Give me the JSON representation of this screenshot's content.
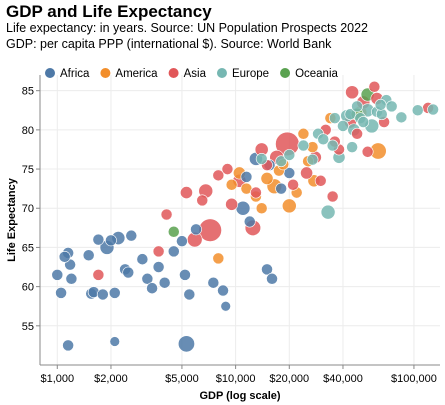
{
  "chart_data": {
    "type": "scatter",
    "title": "GDP and Life Expectancy",
    "subtitle_lines": [
      "Life expectancy: in years. Source: UN Population Prospects 2022",
      "GDP: per capita PPP (international $). Source: World Bank"
    ],
    "xlabel": "GDP (log scale)",
    "ylabel": "Life Expectancy",
    "x_scale": "log",
    "xlim": [
      800,
      140000
    ],
    "ylim": [
      50,
      87
    ],
    "x_ticks": [
      1000,
      2000,
      5000,
      10000,
      20000,
      40000,
      100000
    ],
    "x_tick_labels": [
      "$1,000",
      "$2,000",
      "$5,000",
      "$10,000",
      "$20,000",
      "$40,000",
      "$100,000"
    ],
    "y_ticks": [
      55,
      60,
      65,
      70,
      75,
      80,
      85
    ],
    "y_tick_labels": [
      "55",
      "60",
      "65",
      "70",
      "75",
      "80",
      "85"
    ],
    "grid": true,
    "legend_position": "top-left",
    "series": [
      {
        "name": "Africa",
        "color": "#4e79a7",
        "points": [
          [
            1000,
            61.5,
            0.3
          ],
          [
            1050,
            59.2,
            0.3
          ],
          [
            1150,
            64.3,
            0.3
          ],
          [
            1180,
            62.8,
            0.3
          ],
          [
            1200,
            61.0,
            0.3
          ],
          [
            1150,
            52.5,
            0.3
          ],
          [
            1100,
            63.8,
            0.3
          ],
          [
            1550,
            59.1,
            0.3
          ],
          [
            1600,
            59.3,
            0.3
          ],
          [
            1800,
            59.0,
            0.3
          ],
          [
            1500,
            64.0,
            0.3
          ],
          [
            1700,
            66.0,
            0.3
          ],
          [
            1900,
            65.0,
            0.6
          ],
          [
            2000,
            65.9,
            0.3
          ],
          [
            2200,
            66.2,
            0.5
          ],
          [
            2600,
            66.5,
            0.3
          ],
          [
            2400,
            62.2,
            0.3
          ],
          [
            2100,
            59.2,
            0.3
          ],
          [
            2500,
            61.8,
            0.3
          ],
          [
            3000,
            63.5,
            0.3
          ],
          [
            3200,
            61.0,
            0.3
          ],
          [
            3400,
            59.8,
            0.3
          ],
          [
            3700,
            62.5,
            0.3
          ],
          [
            4000,
            60.5,
            0.3
          ],
          [
            4500,
            64.5,
            0.3
          ],
          [
            5000,
            65.8,
            0.3
          ],
          [
            5200,
            61.5,
            0.3
          ],
          [
            5500,
            59.0,
            0.3
          ],
          [
            5300,
            52.7,
            0.9
          ],
          [
            6000,
            67.3,
            0.3
          ],
          [
            7500,
            60.5,
            0.3
          ],
          [
            8500,
            59.5,
            0.3
          ],
          [
            11000,
            70.0,
            0.6
          ],
          [
            11500,
            74.0,
            0.3
          ],
          [
            12000,
            68.3,
            0.3
          ],
          [
            13000,
            76.3,
            0.5
          ],
          [
            15000,
            62.2,
            0.3
          ],
          [
            16000,
            61.0,
            0.3
          ],
          [
            15500,
            75.5,
            0.3
          ],
          [
            18000,
            72.5,
            0.3
          ],
          [
            20000,
            74.5,
            0.3
          ],
          [
            2100,
            53.0,
            0.2
          ],
          [
            8800,
            57.5,
            0.2
          ]
        ]
      },
      {
        "name": "America",
        "color": "#f28e2b",
        "points": [
          [
            8000,
            63.6,
            0.3
          ],
          [
            9500,
            73.0,
            0.3
          ],
          [
            10500,
            74.5,
            0.4
          ],
          [
            11500,
            72.5,
            0.3
          ],
          [
            13000,
            71.5,
            0.3
          ],
          [
            14000,
            70.0,
            0.3
          ],
          [
            15000,
            73.8,
            0.4
          ],
          [
            16500,
            72.8,
            0.7
          ],
          [
            17500,
            74.8,
            0.3
          ],
          [
            18500,
            75.6,
            0.3
          ],
          [
            20000,
            70.3,
            0.6
          ],
          [
            22000,
            72.0,
            0.3
          ],
          [
            24000,
            79.5,
            0.3
          ],
          [
            25500,
            76.0,
            0.3
          ],
          [
            27000,
            77.8,
            0.3
          ],
          [
            34000,
            81.5,
            0.3
          ],
          [
            50000,
            82.2,
            0.5
          ],
          [
            63000,
            77.3,
            0.9
          ],
          [
            27500,
            73.5,
            0.4
          ]
        ]
      },
      {
        "name": "Asia",
        "color": "#e15759",
        "points": [
          [
            1700,
            61.5,
            0.3
          ],
          [
            3700,
            64.5,
            0.3
          ],
          [
            4100,
            69.2,
            0.3
          ],
          [
            5300,
            72.0,
            0.4
          ],
          [
            5900,
            66.0,
            0.7
          ],
          [
            6500,
            71.0,
            0.3
          ],
          [
            6800,
            72.2,
            0.6
          ],
          [
            7200,
            67.2,
            2.1
          ],
          [
            8000,
            74.2,
            0.3
          ],
          [
            9000,
            75.0,
            0.3
          ],
          [
            9500,
            70.5,
            0.4
          ],
          [
            10500,
            73.5,
            0.5
          ],
          [
            12500,
            67.5,
            0.8
          ],
          [
            13000,
            72.0,
            0.3
          ],
          [
            14000,
            77.5,
            0.5
          ],
          [
            17000,
            76.5,
            0.6
          ],
          [
            19500,
            78.2,
            2.3
          ],
          [
            21000,
            73.0,
            0.3
          ],
          [
            25000,
            74.5,
            0.4
          ],
          [
            28000,
            76.5,
            0.4
          ],
          [
            30000,
            73.5,
            0.3
          ],
          [
            32000,
            80.0,
            0.3
          ],
          [
            38000,
            77.5,
            0.3
          ],
          [
            44000,
            81.0,
            0.4
          ],
          [
            45000,
            84.8,
            0.5
          ],
          [
            48000,
            79.5,
            0.3
          ],
          [
            52000,
            83.5,
            0.5
          ],
          [
            55000,
            77.2,
            0.3
          ],
          [
            60000,
            85.5,
            0.3
          ],
          [
            62000,
            84.0,
            0.4
          ],
          [
            68000,
            81.0,
            0.3
          ],
          [
            120000,
            82.8,
            0.3
          ],
          [
            35000,
            71.5,
            0.3
          ],
          [
            36000,
            78.5,
            0.3
          ],
          [
            15000,
            75.5,
            0.3
          ]
        ]
      },
      {
        "name": "Europe",
        "color": "#76b7b2",
        "points": [
          [
            14000,
            76.3,
            0.3
          ],
          [
            18000,
            76.0,
            0.3
          ],
          [
            20000,
            76.8,
            0.3
          ],
          [
            24000,
            78.0,
            0.3
          ],
          [
            27000,
            76.2,
            0.3
          ],
          [
            29000,
            79.5,
            0.3
          ],
          [
            31000,
            78.8,
            0.3
          ],
          [
            33000,
            69.5,
            0.6
          ],
          [
            35000,
            78.0,
            0.3
          ],
          [
            36000,
            81.5,
            0.3
          ],
          [
            38000,
            76.5,
            0.4
          ],
          [
            40000,
            80.5,
            0.3
          ],
          [
            42000,
            81.8,
            0.4
          ],
          [
            44000,
            82.0,
            0.3
          ],
          [
            46000,
            80.0,
            0.4
          ],
          [
            48000,
            83.0,
            0.3
          ],
          [
            50000,
            81.5,
            0.3
          ],
          [
            52000,
            81.0,
            0.3
          ],
          [
            55000,
            82.5,
            0.5
          ],
          [
            58000,
            80.5,
            0.6
          ],
          [
            62000,
            82.3,
            0.3
          ],
          [
            66000,
            82.0,
            0.3
          ],
          [
            70000,
            83.8,
            0.3
          ],
          [
            75000,
            83.0,
            0.3
          ],
          [
            85000,
            81.6,
            0.3
          ],
          [
            105000,
            82.5,
            0.3
          ],
          [
            128000,
            82.6,
            0.3
          ],
          [
            45000,
            77.8,
            0.3
          ],
          [
            65000,
            83.2,
            0.3
          ]
        ]
      },
      {
        "name": "Oceania",
        "color": "#59a14f",
        "points": [
          [
            4500,
            67.0,
            0.3
          ],
          [
            55000,
            84.5,
            0.5
          ],
          [
            48000,
            82.0,
            0.4
          ]
        ]
      }
    ]
  }
}
